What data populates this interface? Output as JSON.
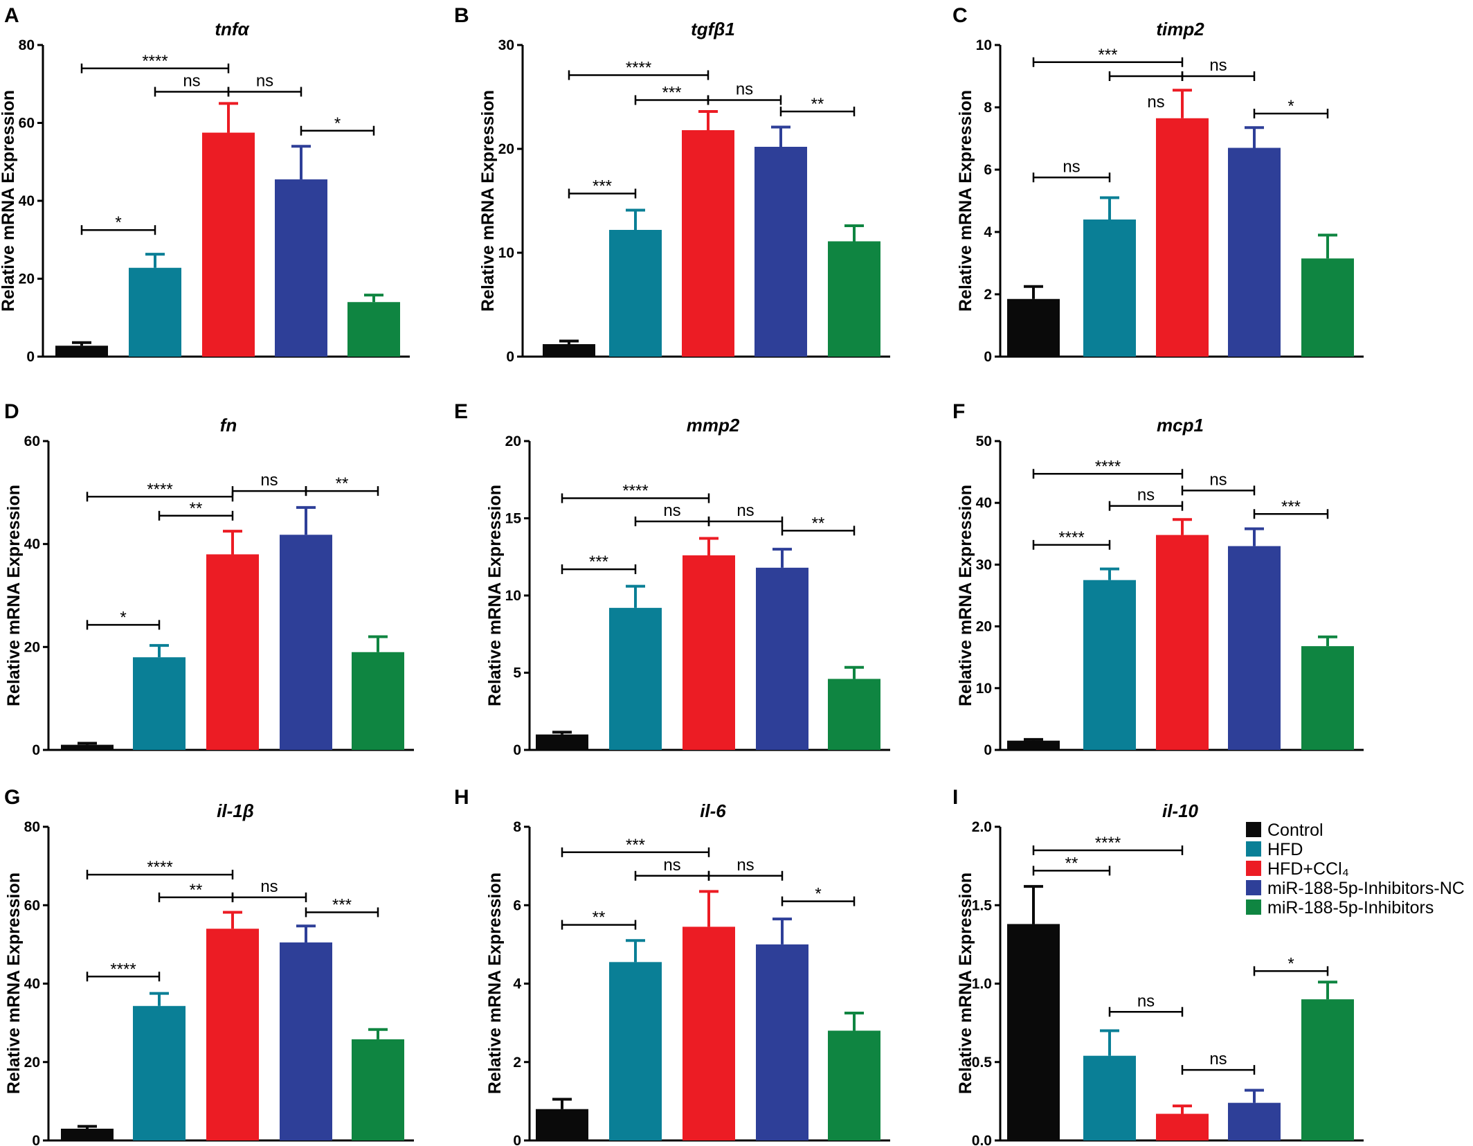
{
  "legend": {
    "entries": [
      {
        "label": "Control",
        "color": "#0a0a0a"
      },
      {
        "label": "HFD",
        "color": "#0a7f96"
      },
      {
        "label": "HFD+CCl₄",
        "color": "#ec1c24"
      },
      {
        "label": "miR-188-5p-Inhibitors-NC",
        "color": "#2e3f98"
      },
      {
        "label": "miR-188-5p-Inhibitors",
        "color": "#0f8541"
      }
    ]
  },
  "chart_data": [
    {
      "type": "bar",
      "letter": "A",
      "title": "tnfα",
      "ylabel": "Relative mRNA Expression",
      "ylim": [
        0,
        80
      ],
      "yticks": [
        0,
        20,
        40,
        60,
        80
      ],
      "tick_labels": [
        "0",
        "20",
        "40",
        "60",
        "80"
      ],
      "categories": [
        "Control",
        "HFD",
        "HFD+CCl₄",
        "miR-188-5p-Inhibitors-NC",
        "miR-188-5p-Inhibitors"
      ],
      "values": [
        2.8,
        22.8,
        57.5,
        45.5,
        14.0
      ],
      "errors": [
        0.8,
        3.5,
        7.5,
        8.5,
        1.8
      ],
      "comparisons": [
        {
          "from": 0,
          "to": 2,
          "label": "****",
          "y": 74
        },
        {
          "from": 1,
          "to": 2,
          "label": "ns",
          "y": 68
        },
        {
          "from": 2,
          "to": 3,
          "label": "ns",
          "y": 68
        },
        {
          "from": 3,
          "to": 4,
          "label": "*",
          "y": 58
        },
        {
          "from": 0,
          "to": 1,
          "label": "*",
          "y": 32.5
        }
      ]
    },
    {
      "type": "bar",
      "letter": "B",
      "title": "tgfβ1",
      "ylabel": "Relative mRNA Expression",
      "ylim": [
        0,
        30
      ],
      "yticks": [
        0,
        10,
        20,
        30
      ],
      "tick_labels": [
        "0",
        "10",
        "20",
        "30"
      ],
      "categories": [
        "Control",
        "HFD",
        "HFD+CCl₄",
        "miR-188-5p-Inhibitors-NC",
        "miR-188-5p-Inhibitors"
      ],
      "values": [
        1.2,
        12.2,
        21.8,
        20.2,
        11.1
      ],
      "errors": [
        0.3,
        1.9,
        1.8,
        1.9,
        1.5
      ],
      "comparisons": [
        {
          "from": 0,
          "to": 2,
          "label": "****",
          "y": 27.1
        },
        {
          "from": 1,
          "to": 2,
          "label": "***",
          "y": 24.7
        },
        {
          "from": 2,
          "to": 3,
          "label": "ns",
          "y": 24.7
        },
        {
          "from": 3,
          "to": 4,
          "label": "**",
          "y": 23.6
        },
        {
          "from": 0,
          "to": 1,
          "label": "***",
          "y": 15.7
        }
      ]
    },
    {
      "type": "bar",
      "letter": "C",
      "title": "timp2",
      "ylabel": "Relative mRNA Expression",
      "ylim": [
        0,
        10
      ],
      "yticks": [
        0,
        2,
        4,
        6,
        8,
        10
      ],
      "tick_labels": [
        "0",
        "2",
        "4",
        "6",
        "8",
        "10"
      ],
      "categories": [
        "Control",
        "HFD",
        "HFD+CCl₄",
        "miR-188-5p-Inhibitors-NC",
        "miR-188-5p-Inhibitors"
      ],
      "values": [
        1.85,
        4.4,
        7.65,
        6.7,
        3.15
      ],
      "errors": [
        0.4,
        0.7,
        0.9,
        0.65,
        0.75
      ],
      "comparisons": [
        {
          "from": 0,
          "to": 2,
          "label": "***",
          "y": 9.45
        },
        {
          "from": 1,
          "to": 2,
          "label": "",
          "y": 9.0
        },
        {
          "from": 2,
          "to": 3,
          "label": "ns",
          "y": 9.0
        },
        {
          "from": 3,
          "to": 4,
          "label": "*",
          "y": 7.8
        },
        {
          "from": 0,
          "to": 1,
          "label": "ns",
          "y": 5.75
        }
      ],
      "annotations": [
        {
          "bar": 2,
          "label": "ns",
          "y": 8.0
        }
      ]
    },
    {
      "type": "bar",
      "letter": "D",
      "title": "fn",
      "ylabel": "Relative mRNA Expression",
      "ylim": [
        0,
        60
      ],
      "yticks": [
        0,
        20,
        40,
        60
      ],
      "tick_labels": [
        "0",
        "20",
        "40",
        "60"
      ],
      "categories": [
        "Control",
        "HFD",
        "HFD+CCl₄",
        "miR-188-5p-Inhibitors-NC",
        "miR-188-5p-Inhibitors"
      ],
      "values": [
        1.0,
        18.0,
        38.0,
        41.8,
        19.0
      ],
      "errors": [
        0.3,
        2.3,
        4.5,
        5.3,
        3.0
      ],
      "comparisons": [
        {
          "from": 0,
          "to": 2,
          "label": "****",
          "y": 49.2
        },
        {
          "from": 1,
          "to": 2,
          "label": "**",
          "y": 45.5
        },
        {
          "from": 2,
          "to": 3,
          "label": "ns",
          "y": 50.3
        },
        {
          "from": 3,
          "to": 4,
          "label": "**",
          "y": 50.3
        },
        {
          "from": 0,
          "to": 1,
          "label": "*",
          "y": 24.3
        }
      ]
    },
    {
      "type": "bar",
      "letter": "E",
      "title": "mmp2",
      "ylabel": "Relative mRNA Expression",
      "ylim": [
        0,
        20
      ],
      "yticks": [
        0,
        5,
        10,
        15,
        20
      ],
      "tick_labels": [
        "0",
        "5",
        "10",
        "15",
        "20"
      ],
      "categories": [
        "Control",
        "HFD",
        "HFD+CCl₄",
        "miR-188-5p-Inhibitors-NC",
        "miR-188-5p-Inhibitors"
      ],
      "values": [
        1.0,
        9.2,
        12.6,
        11.8,
        4.6
      ],
      "errors": [
        0.15,
        1.4,
        1.1,
        1.2,
        0.75
      ],
      "comparisons": [
        {
          "from": 0,
          "to": 2,
          "label": "****",
          "y": 16.3
        },
        {
          "from": 1,
          "to": 2,
          "label": "ns",
          "y": 14.8
        },
        {
          "from": 2,
          "to": 3,
          "label": "ns",
          "y": 14.8
        },
        {
          "from": 3,
          "to": 4,
          "label": "**",
          "y": 14.2
        },
        {
          "from": 0,
          "to": 1,
          "label": "***",
          "y": 11.7
        }
      ]
    },
    {
      "type": "bar",
      "letter": "F",
      "title": "mcp1",
      "ylabel": "Relative mRNA Expression",
      "ylim": [
        0,
        50
      ],
      "yticks": [
        0,
        10,
        20,
        30,
        40,
        50
      ],
      "tick_labels": [
        "0",
        "10",
        "20",
        "30",
        "40",
        "50"
      ],
      "categories": [
        "Control",
        "HFD",
        "HFD+CCl₄",
        "miR-188-5p-Inhibitors-NC",
        "miR-188-5p-Inhibitors"
      ],
      "values": [
        1.5,
        27.5,
        34.8,
        33.0,
        16.8
      ],
      "errors": [
        0.2,
        1.8,
        2.5,
        2.8,
        1.5
      ],
      "comparisons": [
        {
          "from": 0,
          "to": 2,
          "label": "****",
          "y": 44.7
        },
        {
          "from": 1,
          "to": 2,
          "label": "ns",
          "y": 39.5
        },
        {
          "from": 2,
          "to": 3,
          "label": "ns",
          "y": 42.0
        },
        {
          "from": 3,
          "to": 4,
          "label": "***",
          "y": 38.2
        },
        {
          "from": 0,
          "to": 1,
          "label": "****",
          "y": 33.2
        }
      ]
    },
    {
      "type": "bar",
      "letter": "G",
      "title": "il-1β",
      "ylabel": "Relative mRNA Expression",
      "ylim": [
        0,
        80
      ],
      "yticks": [
        0,
        20,
        40,
        60,
        80
      ],
      "tick_labels": [
        "0",
        "20",
        "40",
        "60",
        "80"
      ],
      "categories": [
        "Control",
        "HFD",
        "HFD+CCl₄",
        "miR-188-5p-Inhibitors-NC",
        "miR-188-5p-Inhibitors"
      ],
      "values": [
        3.0,
        34.3,
        54.0,
        50.5,
        25.8
      ],
      "errors": [
        0.6,
        3.2,
        4.2,
        4.2,
        2.5
      ],
      "comparisons": [
        {
          "from": 0,
          "to": 2,
          "label": "****",
          "y": 67.8
        },
        {
          "from": 1,
          "to": 2,
          "label": "**",
          "y": 62.0
        },
        {
          "from": 2,
          "to": 3,
          "label": "ns",
          "y": 62.0
        },
        {
          "from": 3,
          "to": 4,
          "label": "***",
          "y": 58.2
        },
        {
          "from": 0,
          "to": 1,
          "label": "****",
          "y": 41.8
        }
      ]
    },
    {
      "type": "bar",
      "letter": "H",
      "title": "il-6",
      "ylabel": "Relative mRNA Expression",
      "ylim": [
        0,
        8
      ],
      "yticks": [
        0,
        2,
        4,
        6,
        8
      ],
      "tick_labels": [
        "0",
        "2",
        "4",
        "6",
        "8"
      ],
      "categories": [
        "Control",
        "HFD",
        "HFD+CCl₄",
        "miR-188-5p-Inhibitors-NC",
        "miR-188-5p-Inhibitors"
      ],
      "values": [
        0.8,
        4.55,
        5.45,
        5.0,
        2.8
      ],
      "errors": [
        0.25,
        0.55,
        0.9,
        0.65,
        0.45
      ],
      "comparisons": [
        {
          "from": 0,
          "to": 2,
          "label": "***",
          "y": 7.35
        },
        {
          "from": 1,
          "to": 2,
          "label": "ns",
          "y": 6.75
        },
        {
          "from": 2,
          "to": 3,
          "label": "ns",
          "y": 6.75
        },
        {
          "from": 3,
          "to": 4,
          "label": "*",
          "y": 6.1
        },
        {
          "from": 0,
          "to": 1,
          "label": "**",
          "y": 5.5
        }
      ]
    },
    {
      "type": "bar",
      "letter": "I",
      "title": "il-10",
      "ylabel": "Relative mRNA Expression",
      "ylim": [
        0,
        2.0
      ],
      "yticks": [
        0,
        0.5,
        1.0,
        1.5,
        2.0
      ],
      "tick_labels": [
        "0.0",
        "0.5",
        "1.0",
        "1.5",
        "2.0"
      ],
      "categories": [
        "Control",
        "HFD",
        "HFD+CCl₄",
        "miR-188-5p-Inhibitors-NC",
        "miR-188-5p-Inhibitors"
      ],
      "values": [
        1.38,
        0.54,
        0.17,
        0.24,
        0.9
      ],
      "errors": [
        0.24,
        0.16,
        0.05,
        0.08,
        0.11
      ],
      "comparisons": [
        {
          "from": 0,
          "to": 2,
          "label": "****",
          "y": 1.85
        },
        {
          "from": 0,
          "to": 1,
          "label": "**",
          "y": 1.72
        },
        {
          "from": 1,
          "to": 2,
          "label": "ns",
          "y": 0.82
        },
        {
          "from": 3,
          "to": 4,
          "label": "*",
          "y": 1.08
        },
        {
          "from": 2,
          "to": 3,
          "label": "ns",
          "y": 0.45
        }
      ]
    }
  ]
}
